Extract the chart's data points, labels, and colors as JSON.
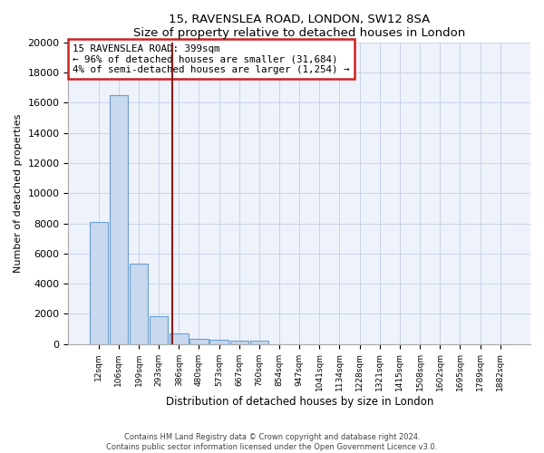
{
  "title1": "15, RAVENSLEA ROAD, LONDON, SW12 8SA",
  "title2": "Size of property relative to detached houses in London",
  "xlabel": "Distribution of detached houses by size in London",
  "ylabel": "Number of detached properties",
  "categories": [
    "12sqm",
    "106sqm",
    "199sqm",
    "293sqm",
    "386sqm",
    "480sqm",
    "573sqm",
    "667sqm",
    "760sqm",
    "854sqm",
    "947sqm",
    "1041sqm",
    "1134sqm",
    "1228sqm",
    "1321sqm",
    "1415sqm",
    "1508sqm",
    "1602sqm",
    "1695sqm",
    "1789sqm",
    "1882sqm"
  ],
  "values": [
    8100,
    16500,
    5300,
    1850,
    700,
    350,
    280,
    230,
    200,
    0,
    0,
    0,
    0,
    0,
    0,
    0,
    0,
    0,
    0,
    0,
    0
  ],
  "bar_color": "#c8d8ee",
  "bar_edge_color": "#6a9fd0",
  "vline_position": 3.65,
  "vline_color": "#8b1a1a",
  "annotation_text": "15 RAVENSLEA ROAD: 399sqm\n← 96% of detached houses are smaller (31,684)\n4% of semi-detached houses are larger (1,254) →",
  "annotation_box_edgecolor": "#cc2222",
  "ylim": [
    0,
    20000
  ],
  "yticks": [
    0,
    2000,
    4000,
    6000,
    8000,
    10000,
    12000,
    14000,
    16000,
    18000,
    20000
  ],
  "footer1": "Contains HM Land Registry data © Crown copyright and database right 2024.",
  "footer2": "Contains public sector information licensed under the Open Government Licence v3.0.",
  "grid_color": "#c8d4e8",
  "bg_color": "#eef2fa"
}
